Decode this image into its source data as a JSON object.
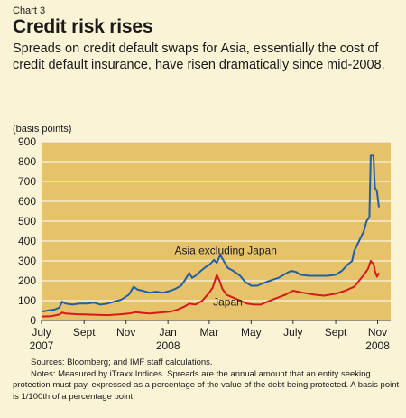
{
  "header": {
    "chart_number": "Chart 3",
    "title": "Credit risk rises",
    "subtitle": "Spreads on credit default swaps for Asia, essentially the cost of credit default insurance, have risen dramatically since mid-2008."
  },
  "footer": {
    "sources": "Sources: Bloomberg; and IMF staff calculations.",
    "notes": "Notes: Measured by iTraxx Indices. Spreads are the annual amount that an entity seeking protection must pay, expressed as a percentage of the value of the debt being protected. A basis point is 1/100th of a percentage point."
  },
  "colors": {
    "plot_background": "#e6c36b",
    "asia_line": "#1f5fa8",
    "japan_line": "#d7191c"
  },
  "chart_data": {
    "type": "line",
    "unit_label": "(basis points)",
    "ylim": [
      0,
      900
    ],
    "yticks": [
      0,
      100,
      200,
      300,
      400,
      500,
      600,
      700,
      800,
      900
    ],
    "xlim": [
      "2007-07-01",
      "2008-11-20"
    ],
    "grid": true,
    "x_ticks": [
      {
        "date": "2007-07-01",
        "label": "July",
        "year": "2007"
      },
      {
        "date": "2007-09-01",
        "label": "Sept",
        "year": ""
      },
      {
        "date": "2007-11-01",
        "label": "Nov",
        "year": ""
      },
      {
        "date": "2008-01-01",
        "label": "Jan",
        "year": "2008"
      },
      {
        "date": "2008-03-01",
        "label": "Mar",
        "year": ""
      },
      {
        "date": "2008-05-01",
        "label": "May",
        "year": ""
      },
      {
        "date": "2008-07-01",
        "label": "July",
        "year": ""
      },
      {
        "date": "2008-09-01",
        "label": "Sept",
        "year": ""
      },
      {
        "date": "2008-11-01",
        "label": "Nov",
        "year": "2008"
      }
    ],
    "series": [
      {
        "name": "Asia excluding Japan",
        "label_at": {
          "date": "2008-03-25",
          "value": 335
        },
        "points": [
          [
            "2007-07-01",
            45
          ],
          [
            "2007-07-10",
            50
          ],
          [
            "2007-07-20",
            55
          ],
          [
            "2007-07-27",
            65
          ],
          [
            "2007-07-31",
            95
          ],
          [
            "2007-08-05",
            85
          ],
          [
            "2007-08-15",
            80
          ],
          [
            "2007-08-25",
            85
          ],
          [
            "2007-09-05",
            85
          ],
          [
            "2007-09-15",
            90
          ],
          [
            "2007-09-25",
            80
          ],
          [
            "2007-10-05",
            85
          ],
          [
            "2007-10-15",
            95
          ],
          [
            "2007-10-25",
            105
          ],
          [
            "2007-11-05",
            130
          ],
          [
            "2007-11-12",
            170
          ],
          [
            "2007-11-18",
            155
          ],
          [
            "2007-11-25",
            150
          ],
          [
            "2007-12-05",
            140
          ],
          [
            "2007-12-15",
            145
          ],
          [
            "2007-12-25",
            140
          ],
          [
            "2008-01-05",
            150
          ],
          [
            "2008-01-12",
            160
          ],
          [
            "2008-01-20",
            175
          ],
          [
            "2008-01-25",
            200
          ],
          [
            "2008-02-01",
            240
          ],
          [
            "2008-02-05",
            215
          ],
          [
            "2008-02-10",
            225
          ],
          [
            "2008-02-18",
            250
          ],
          [
            "2008-02-25",
            270
          ],
          [
            "2008-03-01",
            280
          ],
          [
            "2008-03-08",
            305
          ],
          [
            "2008-03-12",
            290
          ],
          [
            "2008-03-17",
            330
          ],
          [
            "2008-03-22",
            300
          ],
          [
            "2008-03-28",
            265
          ],
          [
            "2008-04-05",
            250
          ],
          [
            "2008-04-15",
            225
          ],
          [
            "2008-04-22",
            195
          ],
          [
            "2008-05-01",
            175
          ],
          [
            "2008-05-10",
            175
          ],
          [
            "2008-05-20",
            190
          ],
          [
            "2008-06-01",
            205
          ],
          [
            "2008-06-10",
            215
          ],
          [
            "2008-06-20",
            235
          ],
          [
            "2008-06-28",
            250
          ],
          [
            "2008-07-05",
            245
          ],
          [
            "2008-07-12",
            230
          ],
          [
            "2008-07-25",
            225
          ],
          [
            "2008-08-05",
            225
          ],
          [
            "2008-08-20",
            225
          ],
          [
            "2008-09-01",
            230
          ],
          [
            "2008-09-10",
            250
          ],
          [
            "2008-09-18",
            280
          ],
          [
            "2008-09-25",
            300
          ],
          [
            "2008-09-28",
            350
          ],
          [
            "2008-10-05",
            400
          ],
          [
            "2008-10-12",
            450
          ],
          [
            "2008-10-16",
            500
          ],
          [
            "2008-10-20",
            520
          ],
          [
            "2008-10-22",
            830
          ],
          [
            "2008-10-26",
            830
          ],
          [
            "2008-10-28",
            670
          ],
          [
            "2008-10-31",
            650
          ],
          [
            "2008-11-03",
            570
          ]
        ]
      },
      {
        "name": "Japan",
        "label_at": {
          "date": "2008-03-28",
          "value": 75
        },
        "points": [
          [
            "2007-07-01",
            20
          ],
          [
            "2007-07-15",
            22
          ],
          [
            "2007-07-27",
            30
          ],
          [
            "2007-07-31",
            40
          ],
          [
            "2007-08-05",
            35
          ],
          [
            "2007-08-20",
            32
          ],
          [
            "2007-09-05",
            30
          ],
          [
            "2007-09-20",
            28
          ],
          [
            "2007-10-05",
            27
          ],
          [
            "2007-10-20",
            30
          ],
          [
            "2007-11-05",
            35
          ],
          [
            "2007-11-15",
            42
          ],
          [
            "2007-11-25",
            38
          ],
          [
            "2007-12-05",
            35
          ],
          [
            "2007-12-20",
            40
          ],
          [
            "2008-01-05",
            45
          ],
          [
            "2008-01-15",
            55
          ],
          [
            "2008-01-25",
            70
          ],
          [
            "2008-02-01",
            85
          ],
          [
            "2008-02-10",
            80
          ],
          [
            "2008-02-20",
            100
          ],
          [
            "2008-03-01",
            140
          ],
          [
            "2008-03-06",
            165
          ],
          [
            "2008-03-12",
            230
          ],
          [
            "2008-03-16",
            200
          ],
          [
            "2008-03-20",
            160
          ],
          [
            "2008-03-26",
            130
          ],
          [
            "2008-04-05",
            115
          ],
          [
            "2008-04-15",
            100
          ],
          [
            "2008-04-25",
            85
          ],
          [
            "2008-05-05",
            80
          ],
          [
            "2008-05-15",
            80
          ],
          [
            "2008-05-25",
            95
          ],
          [
            "2008-06-05",
            110
          ],
          [
            "2008-06-20",
            130
          ],
          [
            "2008-07-01",
            150
          ],
          [
            "2008-07-15",
            140
          ],
          [
            "2008-08-01",
            130
          ],
          [
            "2008-08-15",
            125
          ],
          [
            "2008-09-01",
            135
          ],
          [
            "2008-09-15",
            150
          ],
          [
            "2008-09-28",
            170
          ],
          [
            "2008-10-05",
            200
          ],
          [
            "2008-10-12",
            230
          ],
          [
            "2008-10-18",
            260
          ],
          [
            "2008-10-22",
            300
          ],
          [
            "2008-10-26",
            285
          ],
          [
            "2008-10-28",
            250
          ],
          [
            "2008-10-31",
            220
          ],
          [
            "2008-11-03",
            240
          ]
        ]
      }
    ]
  }
}
